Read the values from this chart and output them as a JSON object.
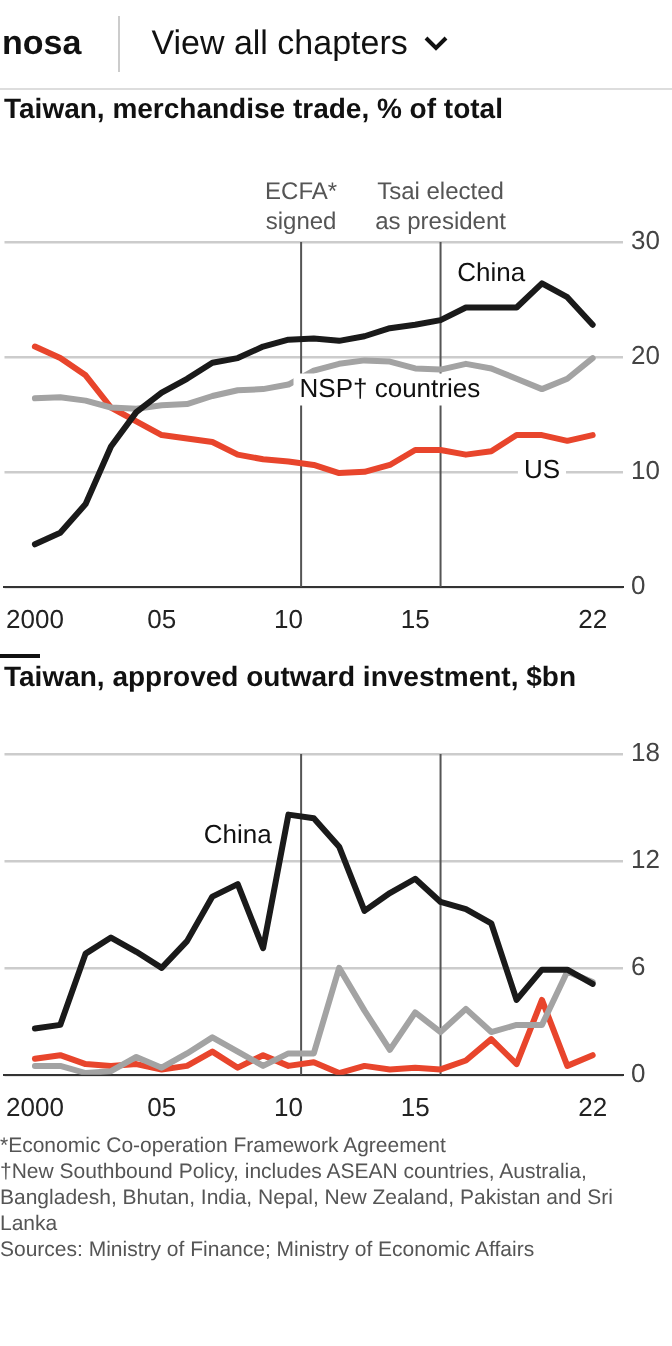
{
  "chart_data": [
    {
      "type": "line",
      "title": "Taiwan, merchandise trade, % of total",
      "annotations": [
        "nosa",
        "View all chapters"
      ],
      "x": [
        2000,
        2001,
        2002,
        2003,
        2004,
        2005,
        2006,
        2007,
        2008,
        2009,
        2010,
        2011,
        2012,
        2013,
        2014,
        2015,
        2016,
        2017,
        2018,
        2019,
        2020,
        2021,
        2022
      ],
      "series": [
        {
          "name": "China",
          "color": "#1a1a1a",
          "values": [
            3.7,
            4.7,
            7.2,
            12.2,
            15.2,
            16.9,
            18.1,
            19.5,
            19.9,
            20.9,
            21.5,
            21.6,
            21.4,
            21.8,
            22.5,
            22.8,
            23.2,
            24.3,
            24.3,
            24.3,
            26.4,
            25.2,
            22.8
          ]
        },
        {
          "name": "NSP† countries",
          "color": "#a3a3a3",
          "values": [
            16.4,
            16.5,
            16.2,
            15.6,
            15.5,
            15.8,
            15.9,
            16.6,
            17.1,
            17.2,
            17.6,
            18.8,
            19.4,
            19.7,
            19.6,
            19.0,
            18.9,
            19.4,
            19.0,
            18.1,
            17.2,
            18.1,
            19.9
          ]
        },
        {
          "name": "US",
          "color": "#e8452c",
          "values": [
            20.9,
            19.9,
            18.4,
            15.6,
            14.4,
            13.2,
            12.9,
            12.6,
            11.5,
            11.1,
            10.9,
            10.6,
            9.9,
            10.0,
            10.6,
            11.9,
            11.9,
            11.5,
            11.8,
            13.2,
            13.2,
            12.7,
            13.2
          ]
        }
      ],
      "xlim": [
        1998.8,
        2023.2
      ],
      "xticks": [
        {
          "value": 2000,
          "label": "2000"
        },
        {
          "value": 2005,
          "label": "05"
        },
        {
          "value": 2010,
          "label": "10"
        },
        {
          "value": 2015,
          "label": "15"
        },
        {
          "value": 2022,
          "label": "22"
        }
      ],
      "ylim": [
        0,
        30
      ],
      "yticks": [
        0,
        10,
        20,
        30
      ],
      "grid": "y",
      "legend": false,
      "marker": "none",
      "line_style": "solid",
      "ref_lines": [
        {
          "axis": "x",
          "value": 2010.5,
          "label": "ECFA* signed",
          "color": "#555555"
        },
        {
          "axis": "x",
          "value": 2016,
          "label": "Tsai elected as president",
          "color": "#555555"
        }
      ]
    },
    {
      "type": "line",
      "title": "Taiwan, approved outward investment, $bn",
      "annotations": [
        "*Economic Co-operation Framework Agreement",
        "†New Southbound Policy, includes ASEAN countries, Australia, Bangladesh, Bhutan, India, Nepal, New Zealand, Pakistan and Sri Lanka",
        "Sources: Ministry of Finance; Ministry of Economic Affairs"
      ],
      "x": [
        2000,
        2001,
        2002,
        2003,
        2004,
        2005,
        2006,
        2007,
        2008,
        2009,
        2010,
        2011,
        2012,
        2013,
        2014,
        2015,
        2016,
        2017,
        2018,
        2019,
        2020,
        2021,
        2022
      ],
      "series": [
        {
          "name": "China",
          "color": "#1a1a1a",
          "values": [
            2.6,
            2.8,
            6.8,
            7.7,
            6.9,
            6.0,
            7.5,
            10.0,
            10.7,
            7.1,
            14.6,
            14.4,
            12.8,
            9.2,
            10.2,
            11.0,
            9.7,
            9.3,
            8.5,
            4.2,
            5.9,
            5.9,
            5.1
          ]
        },
        {
          "color": "#a3a3a3",
          "values": [
            0.5,
            0.5,
            0.1,
            0.2,
            1.0,
            0.4,
            1.2,
            2.1,
            1.3,
            0.5,
            1.2,
            1.2,
            6.0,
            3.6,
            1.4,
            3.5,
            2.4,
            3.7,
            2.4,
            2.8,
            2.8,
            5.8,
            5.2
          ]
        },
        {
          "color": "#e8452c",
          "values": [
            0.9,
            1.1,
            0.6,
            0.5,
            0.6,
            0.3,
            0.5,
            1.3,
            0.4,
            1.1,
            0.5,
            0.7,
            0.1,
            0.5,
            0.3,
            0.4,
            0.3,
            0.8,
            2.0,
            0.6,
            4.2,
            0.5,
            1.1
          ]
        }
      ],
      "xlim": [
        1998.8,
        2023.2
      ],
      "xticks": [
        {
          "value": 2000,
          "label": "2000"
        },
        {
          "value": 2005,
          "label": "05"
        },
        {
          "value": 2010,
          "label": "10"
        },
        {
          "value": 2015,
          "label": "15"
        },
        {
          "value": 2022,
          "label": "22"
        }
      ],
      "ylim": [
        0,
        18
      ],
      "yticks": [
        0,
        6,
        12,
        18
      ],
      "grid": "y",
      "legend": false,
      "marker": "none",
      "line_style": "solid",
      "ref_lines": [
        {
          "axis": "x",
          "value": 2010.5,
          "color": "#555555"
        },
        {
          "axis": "x",
          "value": 2016,
          "color": "#555555"
        }
      ]
    }
  ]
}
